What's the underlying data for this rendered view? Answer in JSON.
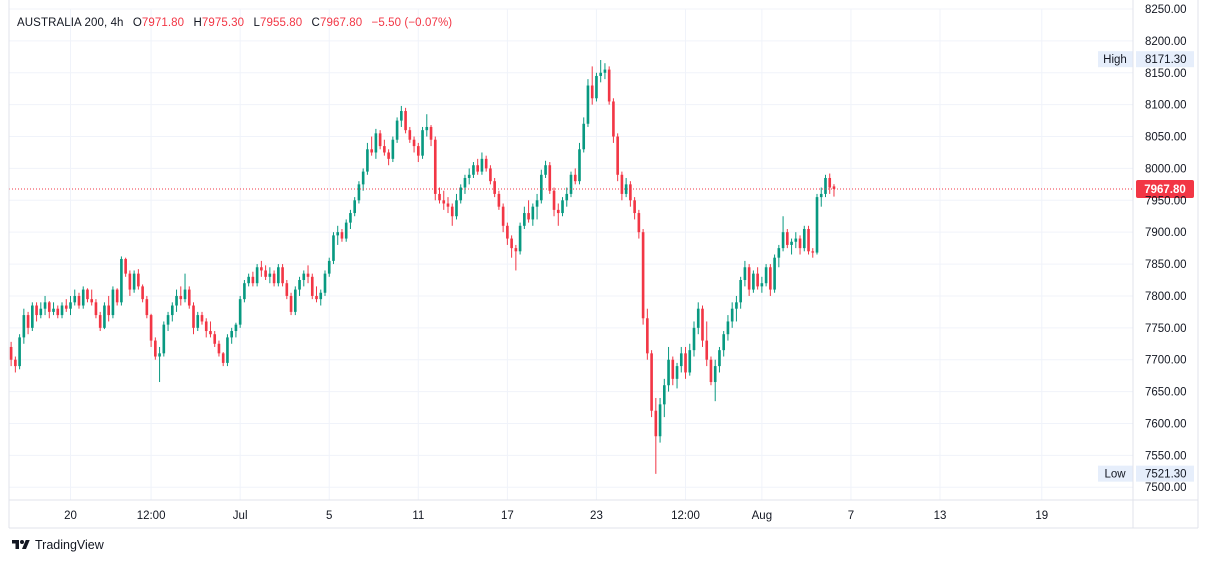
{
  "header": {
    "symbol": "AUSTRALIA 200",
    "interval": "4h",
    "open_label": "O",
    "open": "7971.80",
    "high_label": "H",
    "high": "7975.30",
    "low_label": "L",
    "low": "7955.80",
    "close_label": "C",
    "close": "7967.80",
    "change": "−5.50 (−0.07%)"
  },
  "branding": {
    "name": "TradingView"
  },
  "badges": {
    "high_label": "High",
    "high_value": "8171.30",
    "low_label": "Low",
    "low_value": "7521.30",
    "last_price": "7967.80"
  },
  "colors": {
    "up": "#089981",
    "down": "#f23645",
    "grid": "#f0f3fa",
    "price_line": "#f23645",
    "badge_bg": "#e6eefb"
  },
  "chart_data": {
    "type": "candlestick",
    "ylim": [
      7480,
      8250
    ],
    "y_ticks": [
      {
        "value": 8250,
        "label": "8250.00"
      },
      {
        "value": 8200,
        "label": "8200.00"
      },
      {
        "value": 8150,
        "label": "8150.00"
      },
      {
        "value": 8100,
        "label": "8100.00"
      },
      {
        "value": 8050,
        "label": "8050.00"
      },
      {
        "value": 8000,
        "label": "8000.00"
      },
      {
        "value": 7950,
        "label": "7950.00"
      },
      {
        "value": 7900,
        "label": "7900.00"
      },
      {
        "value": 7850,
        "label": "7850.00"
      },
      {
        "value": 7800,
        "label": "7800.00"
      },
      {
        "value": 7750,
        "label": "7750.00"
      },
      {
        "value": 7700,
        "label": "7700.00"
      },
      {
        "value": 7650,
        "label": "7650.00"
      },
      {
        "value": 7600,
        "label": "7600.00"
      },
      {
        "value": 7550,
        "label": "7550.00"
      },
      {
        "value": 7500,
        "label": "7500.00"
      }
    ],
    "x_ticks": [
      {
        "index": 14,
        "label": "20"
      },
      {
        "index": 33,
        "label": "12:00"
      },
      {
        "index": 54,
        "label": "Jul"
      },
      {
        "index": 75,
        "label": "5"
      },
      {
        "index": 96,
        "label": "11"
      },
      {
        "index": 117,
        "label": "17"
      },
      {
        "index": 138,
        "label": "23"
      },
      {
        "index": 159,
        "label": "12:00"
      },
      {
        "index": 177,
        "label": "Aug"
      },
      {
        "index": 198,
        "label": "7"
      },
      {
        "index": 219,
        "label": "13"
      },
      {
        "index": 243,
        "label": "19"
      }
    ],
    "index_range": [
      -0.5,
      264.5
    ],
    "candles": [
      [
        7720,
        7728,
        7690,
        7700
      ],
      [
        7700,
        7705,
        7680,
        7690
      ],
      [
        7690,
        7740,
        7685,
        7735
      ],
      [
        7735,
        7780,
        7725,
        7770
      ],
      [
        7770,
        7775,
        7740,
        7750
      ],
      [
        7750,
        7790,
        7745,
        7785
      ],
      [
        7785,
        7790,
        7760,
        7770
      ],
      [
        7770,
        7790,
        7765,
        7780
      ],
      [
        7780,
        7800,
        7770,
        7790
      ],
      [
        7790,
        7792,
        7765,
        7775
      ],
      [
        7775,
        7790,
        7770,
        7780
      ],
      [
        7780,
        7785,
        7765,
        7770
      ],
      [
        7770,
        7790,
        7765,
        7785
      ],
      [
        7785,
        7795,
        7775,
        7780
      ],
      [
        7780,
        7800,
        7770,
        7790
      ],
      [
        7790,
        7810,
        7785,
        7800
      ],
      [
        7800,
        7805,
        7780,
        7785
      ],
      [
        7785,
        7815,
        7780,
        7810
      ],
      [
        7810,
        7812,
        7790,
        7795
      ],
      [
        7795,
        7810,
        7785,
        7790
      ],
      [
        7790,
        7795,
        7765,
        7770
      ],
      [
        7770,
        7775,
        7745,
        7750
      ],
      [
        7750,
        7790,
        7748,
        7785
      ],
      [
        7785,
        7800,
        7760,
        7770
      ],
      [
        7770,
        7815,
        7765,
        7810
      ],
      [
        7810,
        7812,
        7785,
        7790
      ],
      [
        7790,
        7862,
        7785,
        7858
      ],
      [
        7858,
        7860,
        7830,
        7835
      ],
      [
        7835,
        7840,
        7800,
        7810
      ],
      [
        7810,
        7840,
        7805,
        7835
      ],
      [
        7835,
        7842,
        7810,
        7815
      ],
      [
        7815,
        7818,
        7790,
        7795
      ],
      [
        7795,
        7800,
        7765,
        7770
      ],
      [
        7770,
        7772,
        7720,
        7730
      ],
      [
        7730,
        7735,
        7700,
        7705
      ],
      [
        7705,
        7720,
        7665,
        7710
      ],
      [
        7710,
        7760,
        7705,
        7755
      ],
      [
        7755,
        7775,
        7745,
        7770
      ],
      [
        7770,
        7790,
        7760,
        7785
      ],
      [
        7785,
        7810,
        7775,
        7800
      ],
      [
        7800,
        7815,
        7785,
        7795
      ],
      [
        7795,
        7835,
        7790,
        7810
      ],
      [
        7810,
        7815,
        7780,
        7785
      ],
      [
        7785,
        7790,
        7740,
        7750
      ],
      [
        7750,
        7775,
        7745,
        7770
      ],
      [
        7770,
        7775,
        7755,
        7760
      ],
      [
        7760,
        7765,
        7735,
        7745
      ],
      [
        7745,
        7760,
        7735,
        7740
      ],
      [
        7740,
        7745,
        7720,
        7725
      ],
      [
        7725,
        7730,
        7705,
        7710
      ],
      [
        7710,
        7712,
        7690,
        7695
      ],
      [
        7695,
        7740,
        7690,
        7735
      ],
      [
        7735,
        7750,
        7725,
        7745
      ],
      [
        7745,
        7758,
        7735,
        7755
      ],
      [
        7755,
        7800,
        7750,
        7795
      ],
      [
        7795,
        7825,
        7790,
        7820
      ],
      [
        7820,
        7835,
        7815,
        7830
      ],
      [
        7830,
        7838,
        7815,
        7820
      ],
      [
        7820,
        7850,
        7815,
        7845
      ],
      [
        7845,
        7855,
        7830,
        7840
      ],
      [
        7840,
        7848,
        7825,
        7830
      ],
      [
        7830,
        7845,
        7820,
        7835
      ],
      [
        7835,
        7840,
        7815,
        7820
      ],
      [
        7820,
        7850,
        7815,
        7845
      ],
      [
        7845,
        7850,
        7815,
        7820
      ],
      [
        7820,
        7825,
        7795,
        7800
      ],
      [
        7800,
        7805,
        7770,
        7775
      ],
      [
        7775,
        7815,
        7770,
        7810
      ],
      [
        7810,
        7830,
        7800,
        7825
      ],
      [
        7825,
        7840,
        7815,
        7835
      ],
      [
        7835,
        7848,
        7820,
        7830
      ],
      [
        7830,
        7835,
        7795,
        7800
      ],
      [
        7800,
        7815,
        7790,
        7795
      ],
      [
        7795,
        7810,
        7785,
        7805
      ],
      [
        7805,
        7840,
        7800,
        7835
      ],
      [
        7835,
        7860,
        7830,
        7855
      ],
      [
        7855,
        7900,
        7850,
        7895
      ],
      [
        7895,
        7910,
        7880,
        7900
      ],
      [
        7900,
        7905,
        7885,
        7890
      ],
      [
        7890,
        7920,
        7885,
        7915
      ],
      [
        7915,
        7935,
        7905,
        7930
      ],
      [
        7930,
        7955,
        7925,
        7950
      ],
      [
        7950,
        7980,
        7945,
        7975
      ],
      [
        7975,
        8000,
        7965,
        7995
      ],
      [
        7995,
        8040,
        7990,
        8030
      ],
      [
        8030,
        8050,
        8020,
        8025
      ],
      [
        8025,
        8062,
        8015,
        8055
      ],
      [
        8055,
        8060,
        8030,
        8035
      ],
      [
        8035,
        8045,
        8020,
        8025
      ],
      [
        8025,
        8030,
        8005,
        8015
      ],
      [
        8015,
        8050,
        8010,
        8045
      ],
      [
        8045,
        8080,
        8040,
        8075
      ],
      [
        8075,
        8098,
        8065,
        8090
      ],
      [
        8090,
        8095,
        8055,
        8060
      ],
      [
        8060,
        8065,
        8040,
        8045
      ],
      [
        8045,
        8050,
        8025,
        8035
      ],
      [
        8035,
        8040,
        8010,
        8020
      ],
      [
        8020,
        8065,
        8015,
        8060
      ],
      [
        8060,
        8085,
        8050,
        8065
      ],
      [
        8065,
        8068,
        8035,
        8045
      ],
      [
        8045,
        8050,
        7950,
        7960
      ],
      [
        7960,
        7970,
        7945,
        7950
      ],
      [
        7950,
        7965,
        7935,
        7945
      ],
      [
        7945,
        7955,
        7930,
        7940
      ],
      [
        7940,
        7945,
        7910,
        7925
      ],
      [
        7925,
        7960,
        7920,
        7950
      ],
      [
        7950,
        7975,
        7945,
        7970
      ],
      [
        7970,
        7990,
        7960,
        7985
      ],
      [
        7985,
        8000,
        7975,
        7990
      ],
      [
        7990,
        8010,
        7985,
        8005
      ],
      [
        8005,
        8015,
        7990,
        7995
      ],
      [
        7995,
        8025,
        7990,
        8015
      ],
      [
        8015,
        8020,
        7995,
        8000
      ],
      [
        8000,
        8005,
        7975,
        7980
      ],
      [
        7980,
        7985,
        7955,
        7960
      ],
      [
        7960,
        7965,
        7935,
        7940
      ],
      [
        7940,
        7945,
        7900,
        7910
      ],
      [
        7910,
        7915,
        7880,
        7890
      ],
      [
        7890,
        7895,
        7860,
        7875
      ],
      [
        7875,
        7880,
        7840,
        7870
      ],
      [
        7870,
        7915,
        7865,
        7910
      ],
      [
        7910,
        7940,
        7905,
        7930
      ],
      [
        7930,
        7950,
        7915,
        7920
      ],
      [
        7920,
        7945,
        7910,
        7940
      ],
      [
        7940,
        7960,
        7920,
        7950
      ],
      [
        7950,
        7998,
        7945,
        7990
      ],
      [
        7990,
        8012,
        7985,
        8005
      ],
      [
        8005,
        8010,
        7960,
        7965
      ],
      [
        7965,
        7970,
        7925,
        7935
      ],
      [
        7935,
        7945,
        7910,
        7930
      ],
      [
        7930,
        7955,
        7925,
        7950
      ],
      [
        7950,
        7970,
        7940,
        7960
      ],
      [
        7960,
        7995,
        7955,
        7990
      ],
      [
        7990,
        8000,
        7975,
        7980
      ],
      [
        7980,
        8040,
        7975,
        8030
      ],
      [
        8030,
        8080,
        8025,
        8070
      ],
      [
        8070,
        8140,
        8065,
        8130
      ],
      [
        8130,
        8160,
        8100,
        8110
      ],
      [
        8110,
        8150,
        8105,
        8145
      ],
      [
        8145,
        8170,
        8135,
        8150
      ],
      [
        8150,
        8165,
        8140,
        8155
      ],
      [
        8155,
        8160,
        8100,
        8105
      ],
      [
        8105,
        8110,
        8040,
        8050
      ],
      [
        8050,
        8055,
        7980,
        7990
      ],
      [
        7990,
        7995,
        7950,
        7960
      ],
      [
        7960,
        7985,
        7955,
        7975
      ],
      [
        7975,
        7980,
        7940,
        7950
      ],
      [
        7950,
        7955,
        7920,
        7930
      ],
      [
        7930,
        7935,
        7890,
        7900
      ],
      [
        7900,
        7905,
        7755,
        7765
      ],
      [
        7765,
        7780,
        7700,
        7710
      ],
      [
        7710,
        7715,
        7610,
        7620
      ],
      [
        7620,
        7640,
        7521,
        7580
      ],
      [
        7580,
        7640,
        7570,
        7630
      ],
      [
        7630,
        7670,
        7610,
        7660
      ],
      [
        7660,
        7720,
        7650,
        7700
      ],
      [
        7700,
        7705,
        7660,
        7670
      ],
      [
        7670,
        7695,
        7655,
        7690
      ],
      [
        7690,
        7720,
        7680,
        7710
      ],
      [
        7710,
        7720,
        7670,
        7680
      ],
      [
        7680,
        7725,
        7675,
        7715
      ],
      [
        7715,
        7760,
        7705,
        7750
      ],
      [
        7750,
        7790,
        7740,
        7780
      ],
      [
        7780,
        7785,
        7720,
        7730
      ],
      [
        7730,
        7760,
        7690,
        7700
      ],
      [
        7700,
        7705,
        7660,
        7665
      ],
      [
        7665,
        7700,
        7635,
        7690
      ],
      [
        7690,
        7720,
        7680,
        7715
      ],
      [
        7715,
        7745,
        7705,
        7740
      ],
      [
        7740,
        7770,
        7730,
        7760
      ],
      [
        7760,
        7790,
        7750,
        7780
      ],
      [
        7780,
        7800,
        7760,
        7790
      ],
      [
        7790,
        7830,
        7780,
        7825
      ],
      [
        7825,
        7855,
        7815,
        7845
      ],
      [
        7845,
        7850,
        7800,
        7810
      ],
      [
        7810,
        7840,
        7805,
        7835
      ],
      [
        7835,
        7845,
        7810,
        7815
      ],
      [
        7815,
        7830,
        7805,
        7820
      ],
      [
        7820,
        7850,
        7815,
        7845
      ],
      [
        7845,
        7850,
        7800,
        7810
      ],
      [
        7810,
        7865,
        7805,
        7860
      ],
      [
        7860,
        7880,
        7845,
        7875
      ],
      [
        7875,
        7925,
        7870,
        7900
      ],
      [
        7900,
        7905,
        7875,
        7880
      ],
      [
        7880,
        7890,
        7865,
        7885
      ],
      [
        7885,
        7900,
        7875,
        7890
      ],
      [
        7890,
        7895,
        7865,
        7875
      ],
      [
        7875,
        7910,
        7870,
        7905
      ],
      [
        7905,
        7910,
        7865,
        7870
      ],
      [
        7870,
        7875,
        7860,
        7868
      ],
      [
        7868,
        7960,
        7865,
        7955
      ],
      [
        7955,
        7970,
        7940,
        7960
      ],
      [
        7960,
        7990,
        7955,
        7985
      ],
      [
        7985,
        7992,
        7960,
        7970
      ],
      [
        7971.8,
        7975.3,
        7955.8,
        7967.8
      ]
    ]
  }
}
